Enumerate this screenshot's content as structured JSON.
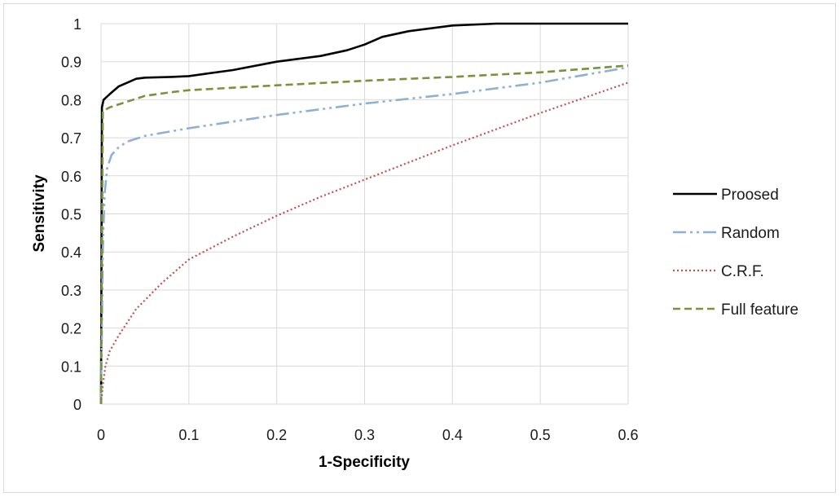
{
  "chart_data": {
    "type": "line",
    "xlabel": "1-Specificity",
    "ylabel": "Sensitivity",
    "xlim": [
      0,
      0.6
    ],
    "ylim": [
      0,
      1
    ],
    "x_ticks": [
      "0",
      "0.1",
      "0.2",
      "0.3",
      "0.4",
      "0.5",
      "0.6"
    ],
    "y_ticks": [
      "0",
      "0.1",
      "0.2",
      "0.3",
      "0.4",
      "0.5",
      "0.6",
      "0.7",
      "0.8",
      "0.9",
      "1"
    ],
    "grid": true,
    "legend_position": "right",
    "series": [
      {
        "name": "Proosed",
        "color": "#000000",
        "dash": "solid",
        "points": [
          [
            0,
            0
          ],
          [
            0.001,
            0.78
          ],
          [
            0.003,
            0.8
          ],
          [
            0.01,
            0.815
          ],
          [
            0.02,
            0.835
          ],
          [
            0.03,
            0.845
          ],
          [
            0.04,
            0.855
          ],
          [
            0.05,
            0.858
          ],
          [
            0.08,
            0.86
          ],
          [
            0.1,
            0.862
          ],
          [
            0.15,
            0.878
          ],
          [
            0.2,
            0.9
          ],
          [
            0.25,
            0.915
          ],
          [
            0.28,
            0.93
          ],
          [
            0.3,
            0.945
          ],
          [
            0.32,
            0.965
          ],
          [
            0.35,
            0.98
          ],
          [
            0.4,
            0.995
          ],
          [
            0.45,
            1.0
          ],
          [
            0.6,
            1.0
          ]
        ]
      },
      {
        "name": "Random",
        "color": "#8eb0d6",
        "dash": "dashdotdot",
        "points": [
          [
            0,
            0
          ],
          [
            0.002,
            0.4
          ],
          [
            0.004,
            0.55
          ],
          [
            0.007,
            0.62
          ],
          [
            0.012,
            0.655
          ],
          [
            0.02,
            0.675
          ],
          [
            0.03,
            0.69
          ],
          [
            0.05,
            0.705
          ],
          [
            0.1,
            0.725
          ],
          [
            0.2,
            0.76
          ],
          [
            0.3,
            0.79
          ],
          [
            0.4,
            0.815
          ],
          [
            0.5,
            0.845
          ],
          [
            0.6,
            0.885
          ]
        ]
      },
      {
        "name": "C.R.F.",
        "color": "#c0504d",
        "dash": "dotted",
        "points": [
          [
            0,
            0
          ],
          [
            0.002,
            0.05
          ],
          [
            0.005,
            0.1
          ],
          [
            0.01,
            0.14
          ],
          [
            0.02,
            0.18
          ],
          [
            0.04,
            0.25
          ],
          [
            0.07,
            0.32
          ],
          [
            0.1,
            0.38
          ],
          [
            0.15,
            0.44
          ],
          [
            0.2,
            0.495
          ],
          [
            0.25,
            0.545
          ],
          [
            0.3,
            0.59
          ],
          [
            0.4,
            0.68
          ],
          [
            0.5,
            0.765
          ],
          [
            0.6,
            0.845
          ]
        ]
      },
      {
        "name": "Full feature",
        "color": "#77933c",
        "dash": "dashed",
        "points": [
          [
            0,
            0
          ],
          [
            0.002,
            0.77
          ],
          [
            0.01,
            0.78
          ],
          [
            0.03,
            0.795
          ],
          [
            0.05,
            0.81
          ],
          [
            0.08,
            0.82
          ],
          [
            0.1,
            0.825
          ],
          [
            0.2,
            0.838
          ],
          [
            0.3,
            0.85
          ],
          [
            0.4,
            0.86
          ],
          [
            0.5,
            0.872
          ],
          [
            0.6,
            0.89
          ]
        ]
      }
    ]
  }
}
